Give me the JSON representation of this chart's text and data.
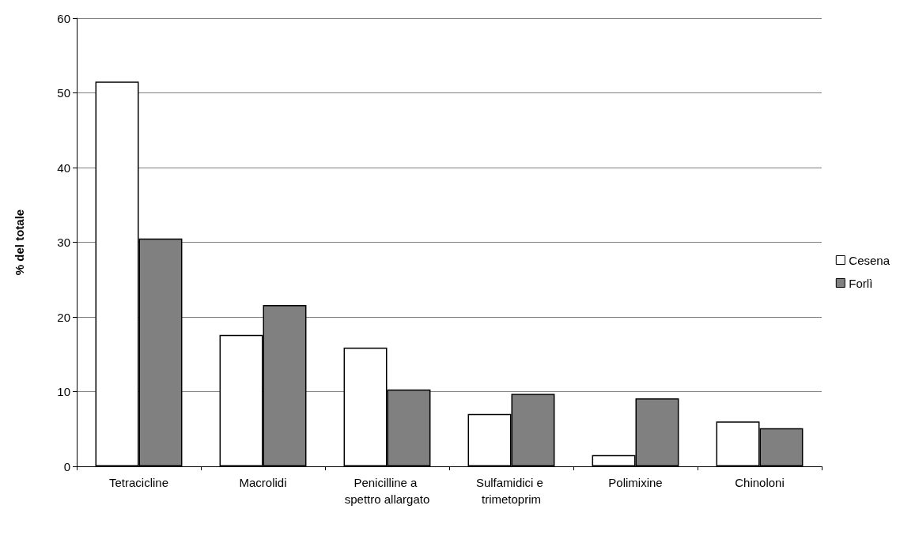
{
  "chart_data": {
    "type": "bar",
    "ylabel": "% del totale",
    "categories": [
      "Tetracicline",
      "Macrolidi",
      "Penicilline a spettro allargato",
      "Sulfamidici e trimetoprim",
      "Polimixine",
      "Chinoloni"
    ],
    "series": [
      {
        "name": "Cesena",
        "color": "#ffffff",
        "values": [
          51.5,
          17.6,
          15.9,
          7.0,
          1.5,
          6.0
        ]
      },
      {
        "name": "Forlì",
        "color": "#808080",
        "values": [
          30.5,
          21.6,
          10.3,
          9.7,
          9.1,
          5.1
        ]
      }
    ],
    "ylim": [
      0,
      60
    ],
    "yticks": [
      0,
      10,
      20,
      30,
      40,
      50,
      60
    ],
    "grid": "y",
    "legend": "right"
  }
}
